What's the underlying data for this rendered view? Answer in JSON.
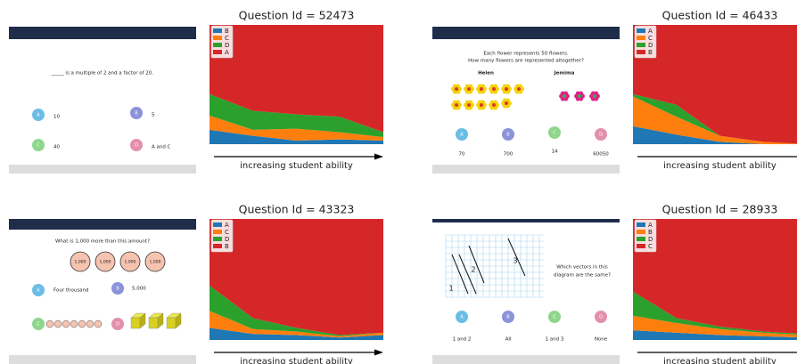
{
  "chart_data": [
    {
      "type": "area",
      "title": "Question Id = 52473",
      "xlabel": "increasing student ability",
      "stacked": true,
      "ylim": [
        0,
        100
      ],
      "categories": [
        null,
        null,
        null,
        null,
        null
      ],
      "series": [
        {
          "name": "B",
          "color": "#1f77b4",
          "values": [
            12,
            7,
            3,
            4,
            3
          ]
        },
        {
          "name": "C",
          "color": "#ff7f0e",
          "values": [
            12,
            5,
            10,
            6,
            3
          ]
        },
        {
          "name": "D",
          "color": "#2ca02c",
          "values": [
            18,
            16,
            12,
            13,
            4
          ]
        },
        {
          "name": "A",
          "color": "#d62728",
          "values": [
            58,
            72,
            75,
            77,
            90
          ]
        }
      ]
    },
    {
      "type": "area",
      "title": "Question Id = 46433",
      "xlabel": "increasing student ability",
      "stacked": true,
      "ylim": [
        0,
        100
      ],
      "categories": [
        null,
        null,
        null,
        null,
        null
      ],
      "series": [
        {
          "name": "A",
          "color": "#1f77b4",
          "values": [
            15,
            8,
            2,
            0,
            0
          ]
        },
        {
          "name": "C",
          "color": "#ff7f0e",
          "values": [
            25,
            15,
            5,
            2,
            0
          ]
        },
        {
          "name": "D",
          "color": "#2ca02c",
          "values": [
            2,
            10,
            0,
            0,
            0
          ]
        },
        {
          "name": "B",
          "color": "#d62728",
          "values": [
            58,
            67,
            93,
            98,
            100
          ]
        }
      ]
    },
    {
      "type": "area",
      "title": "Question Id = 43323",
      "xlabel": "increasing student ability",
      "stacked": true,
      "ylim": [
        0,
        100
      ],
      "categories": [
        null,
        null,
        null,
        null,
        null
      ],
      "series": [
        {
          "name": "A",
          "color": "#1f77b4",
          "values": [
            10,
            5,
            4,
            2,
            4
          ]
        },
        {
          "name": "C",
          "color": "#ff7f0e",
          "values": [
            14,
            4,
            3,
            1,
            2
          ]
        },
        {
          "name": "D",
          "color": "#2ca02c",
          "values": [
            21,
            9,
            3,
            1,
            0
          ]
        },
        {
          "name": "B",
          "color": "#d62728",
          "values": [
            55,
            82,
            90,
            96,
            94
          ]
        }
      ]
    },
    {
      "type": "area",
      "title": "Question Id = 28933",
      "xlabel": "increasing student ability",
      "stacked": true,
      "ylim": [
        0,
        100
      ],
      "categories": [
        null,
        null,
        null,
        null,
        null
      ],
      "series": [
        {
          "name": "A",
          "color": "#1f77b4",
          "values": [
            8,
            6,
            4,
            3,
            2
          ]
        },
        {
          "name": "B",
          "color": "#ff7f0e",
          "values": [
            12,
            8,
            5,
            3,
            2
          ]
        },
        {
          "name": "D",
          "color": "#2ca02c",
          "values": [
            20,
            4,
            2,
            1,
            1
          ]
        },
        {
          "name": "C",
          "color": "#d62728",
          "values": [
            60,
            82,
            89,
            93,
            95
          ]
        }
      ]
    }
  ],
  "questions": [
    {
      "text": [
        "_____ is a multiple of 2 and a factor of 20."
      ],
      "options": [
        {
          "letter": "A",
          "text": "10"
        },
        {
          "letter": "B",
          "text": "5"
        },
        {
          "letter": "C",
          "text": "40"
        },
        {
          "letter": "D",
          "text": "A and C"
        }
      ]
    },
    {
      "text": [
        "Each flower represents 50 flowers.",
        "How many flowers are represented altogether?"
      ],
      "names": [
        "Helen",
        "Jemima"
      ],
      "options": [
        {
          "letter": "A",
          "text": "70"
        },
        {
          "letter": "B",
          "text": "700"
        },
        {
          "letter": "C",
          "text": "14"
        },
        {
          "letter": "D",
          "text": "60050"
        }
      ]
    },
    {
      "text": [
        "What is 1,000 more than this amount?"
      ],
      "counters": [
        "1,000",
        "1,000",
        "1,000",
        "1,000"
      ],
      "options": [
        {
          "letter": "A",
          "text": "Four thousand"
        },
        {
          "letter": "B",
          "text": "5,000"
        },
        {
          "letter": "C"
        },
        {
          "letter": "D"
        }
      ]
    },
    {
      "text": [
        "Which vectors in this",
        "diagram are the same?"
      ],
      "vector_labels": [
        "1",
        "2",
        "3"
      ],
      "options": [
        {
          "letter": "A",
          "text": "1 and 2"
        },
        {
          "letter": "B",
          "text": "All"
        },
        {
          "letter": "C",
          "text": "1 and 3"
        },
        {
          "letter": "D",
          "text": "None"
        }
      ]
    }
  ]
}
